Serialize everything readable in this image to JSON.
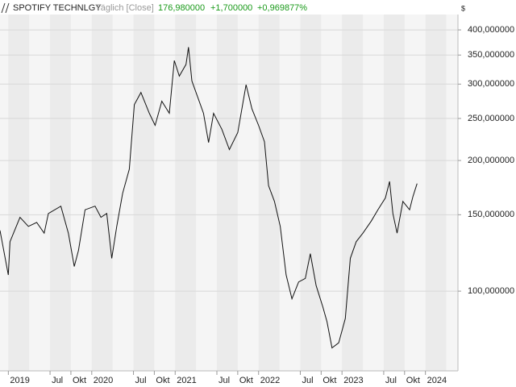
{
  "chart_data": {
    "type": "line",
    "title": "SPOTIFY TECHNLGY",
    "subtitle": "Täglich [Close]",
    "last_price": "176,980000",
    "change": "+1,700000",
    "change_pct": "+0,969877%",
    "y_unit": "$",
    "color": "#111111",
    "log_scale": true,
    "grid": true,
    "x": [
      2018.9,
      2019.0,
      2019.02,
      2019.14,
      2019.24,
      2019.34,
      2019.43,
      2019.48,
      2019.63,
      2019.72,
      2019.79,
      2019.84,
      2019.92,
      2020.04,
      2020.11,
      2020.18,
      2020.24,
      2020.3,
      2020.37,
      2020.45,
      2020.51,
      2020.59,
      2020.69,
      2020.76,
      2020.84,
      2020.93,
      2020.99,
      2021.05,
      2021.13,
      2021.16,
      2021.2,
      2021.27,
      2021.34,
      2021.4,
      2021.46,
      2021.56,
      2021.65,
      2021.75,
      2021.85,
      2021.92,
      2022.0,
      2022.07,
      2022.12,
      2022.19,
      2022.26,
      2022.33,
      2022.4,
      2022.48,
      2022.56,
      2022.62,
      2022.69,
      2022.77,
      2022.82,
      2022.88,
      2022.96,
      2023.04,
      2023.1,
      2023.17,
      2023.25,
      2023.35,
      2023.43,
      2023.52,
      2023.57,
      2023.61,
      2023.66,
      2023.73,
      2023.81,
      2023.85,
      2023.9
    ],
    "values": [
      138,
      109,
      130,
      148,
      141,
      144,
      136,
      151,
      157,
      136,
      114,
      124,
      154,
      157,
      148,
      151,
      119,
      141,
      168,
      191,
      269,
      287,
      257,
      241,
      274,
      257,
      340,
      313,
      333,
      365,
      305,
      280,
      257,
      220,
      257,
      236,
      212,
      232,
      299,
      263,
      241,
      221,
      175,
      161,
      141,
      109,
      96,
      105,
      107,
      122,
      103,
      92,
      85,
      74,
      76,
      86.5,
      119,
      130,
      136,
      145,
      154,
      164,
      179,
      151,
      136,
      161,
      154,
      165,
      176.98
    ],
    "xlim": [
      2018.9,
      2024.39
    ],
    "ylim": [
      65.5,
      434
    ],
    "xticks": [
      {
        "value": 2019,
        "label": "2019"
      },
      {
        "value": 2019.5,
        "label": "Jul"
      },
      {
        "value": 2019.75,
        "label": "Okt"
      },
      {
        "value": 2020,
        "label": "2020"
      },
      {
        "value": 2020.5,
        "label": "Jul"
      },
      {
        "value": 2020.75,
        "label": "Okt"
      },
      {
        "value": 2021,
        "label": "2021"
      },
      {
        "value": 2021.5,
        "label": "Jul"
      },
      {
        "value": 2021.75,
        "label": "Okt"
      },
      {
        "value": 2022,
        "label": "2022"
      },
      {
        "value": 2022.5,
        "label": "Jul"
      },
      {
        "value": 2022.75,
        "label": "Okt"
      },
      {
        "value": 2023,
        "label": "2023"
      },
      {
        "value": 2023.5,
        "label": "Jul"
      },
      {
        "value": 2023.75,
        "label": "Okt"
      },
      {
        "value": 2024,
        "label": "2024"
      }
    ],
    "yticks": [
      {
        "value": 100,
        "label": "100,000000"
      },
      {
        "value": 150,
        "label": "150,000000"
      },
      {
        "value": 200,
        "label": "200,000000"
      },
      {
        "value": 250,
        "label": "250,000000"
      },
      {
        "value": 300,
        "label": "300,000000"
      },
      {
        "value": 350,
        "label": "350,000000"
      },
      {
        "value": 400,
        "label": "400,000000"
      }
    ]
  }
}
